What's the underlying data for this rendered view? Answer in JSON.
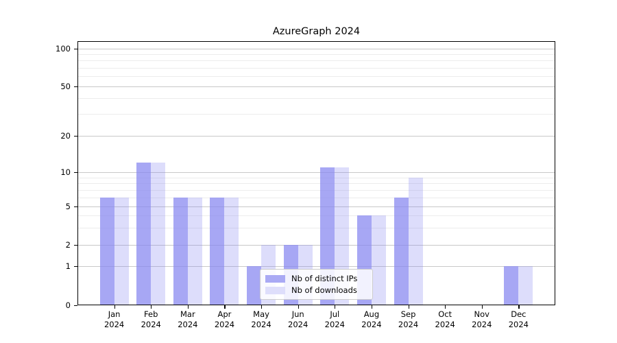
{
  "title": "AzureGraph 2024",
  "chart_data": {
    "type": "bar",
    "title": "AzureGraph 2024",
    "categories": [
      "Jan 2024",
      "Feb 2024",
      "Mar 2024",
      "Apr 2024",
      "May 2024",
      "Jun 2024",
      "Jul 2024",
      "Aug 2024",
      "Sep 2024",
      "Oct 2024",
      "Nov 2024",
      "Dec 2024"
    ],
    "month_labels": [
      "Jan",
      "Feb",
      "Mar",
      "Apr",
      "May",
      "Jun",
      "Jul",
      "Aug",
      "Sep",
      "Oct",
      "Nov",
      "Dec"
    ],
    "year_label": "2024",
    "series": [
      {
        "name": "Nb of distinct IPs",
        "color": "rgba(133,133,240,0.72)",
        "legend_color": "#a9a9f4",
        "values": [
          6,
          12,
          6,
          6,
          1,
          2,
          11,
          4,
          6,
          0,
          0,
          1
        ]
      },
      {
        "name": "Nb of downloads",
        "color": "rgba(133,133,240,0.28)",
        "legend_color": "#dedefb",
        "values": [
          6,
          12,
          6,
          6,
          2,
          2,
          11,
          4,
          9,
          0,
          0,
          1
        ]
      }
    ],
    "y_axis": {
      "scale": "symlog",
      "ticks": [
        0,
        1,
        2,
        5,
        10,
        20,
        50,
        100
      ],
      "tick_labels": [
        "0",
        "1",
        "2",
        "5",
        "10",
        "20",
        "50",
        "100"
      ],
      "minor_ticks": [
        3,
        4,
        6,
        7,
        8,
        9,
        30,
        40,
        60,
        70,
        80,
        90
      ],
      "ylim_top": 120
    },
    "legend_position": "lower center",
    "grid": true,
    "colors": {
      "grid_major": "#c8c8c8",
      "grid_minor": "#ececec",
      "spine": "#000000",
      "background": "#ffffff"
    }
  }
}
